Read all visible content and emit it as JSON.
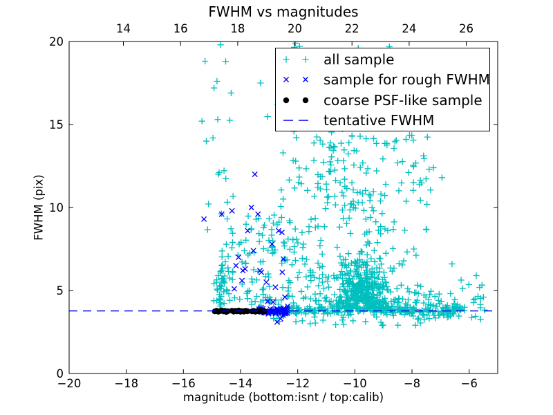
{
  "figure": {
    "title": "FWHM vs magnitudes",
    "xlabel": "magnitude (bottom:isnt / top:calib)",
    "ylabel": "FWHM (pix)"
  },
  "colors": {
    "all_sample": "#00bfbf",
    "rough_sample": "#0000ff",
    "psf_sample": "#000000",
    "tentative_line": "#0000ee",
    "frame": "#000000",
    "background": "#ffffff"
  },
  "axes": {
    "x_bottom": {
      "min": -20,
      "max": -5,
      "ticks": [
        -20,
        -18,
        -16,
        -14,
        -12,
        -10,
        -8,
        -6
      ],
      "tick_labels": [
        "−20",
        "−18",
        "−16",
        "−14",
        "−12",
        "−10",
        "−8",
        "−6"
      ]
    },
    "x_top": {
      "min": 12.1,
      "max": 27.1,
      "ticks": [
        14,
        16,
        18,
        20,
        22,
        24,
        26
      ],
      "tick_labels": [
        "14",
        "16",
        "18",
        "20",
        "22",
        "24",
        "26"
      ]
    },
    "y": {
      "min": 0,
      "max": 20,
      "ticks": [
        0,
        5,
        10,
        15,
        20
      ],
      "tick_labels": [
        "0",
        "5",
        "10",
        "15",
        "20"
      ]
    }
  },
  "legend": {
    "entries": [
      {
        "label": "all sample",
        "marker": "plus",
        "color": "#00bfbf"
      },
      {
        "label": "sample for rough FWHM",
        "marker": "x",
        "color": "#0000ff"
      },
      {
        "label": "coarse PSF-like sample",
        "marker": "dot",
        "color": "#000000"
      },
      {
        "label": "tentative FWHM",
        "marker": "dash",
        "color": "#0000ee"
      }
    ]
  },
  "chart_data": {
    "type": "scatter",
    "title": "FWHM vs magnitudes",
    "xlabel": "magnitude (bottom:isnt / top:calib)",
    "ylabel": "FWHM (pix)",
    "xlim_bottom": [
      -20,
      -5
    ],
    "xlim_top": [
      12.1,
      27.1
    ],
    "ylim": [
      0,
      20
    ],
    "grid": false,
    "legend_position": "upper right",
    "tentative_fwhm": 3.77,
    "series": [
      {
        "name": "all sample",
        "marker": "plus",
        "color": "#00bfbf",
        "points": [
          [
            -15.35,
            15.2
          ],
          [
            -14.93,
            17.2
          ],
          [
            -14.7,
            19.8
          ],
          [
            -14.52,
            18.8
          ],
          [
            -14.33,
            16.9
          ],
          [
            -13.3,
            17.5
          ],
          [
            -12.7,
            16.2
          ],
          [
            -12.08,
            19.9
          ],
          [
            -11.38,
            19.4
          ],
          [
            -10.82,
            17.9
          ],
          [
            -10.28,
            18.8
          ],
          [
            -9.88,
            19.6
          ],
          [
            -9.2,
            16.8
          ],
          [
            -8.62,
            15.1
          ],
          [
            -7.4,
            12.3
          ],
          [
            -6.95,
            11.8
          ],
          [
            -7.25,
            12.4
          ],
          [
            -6.6,
            6.6
          ],
          [
            -5.75,
            5.9
          ],
          [
            -5.5,
            4.6
          ]
        ],
        "clusters": [
          {
            "name": "left-column",
            "count": 35,
            "seed": 1,
            "x": {
              "d": "n",
              "m": -14.72,
              "s": 0.13
            },
            "y": {
              "d": "hn",
              "m": 4.0,
              "s": 1.5
            }
          },
          {
            "name": "left-tall",
            "count": 18,
            "seed": 2,
            "x": {
              "d": "u",
              "a": -15.25,
              "b": -14.25
            },
            "y": {
              "d": "u",
              "a": 8.0,
              "b": 19.5
            }
          },
          {
            "name": "left-mid",
            "count": 55,
            "seed": 3,
            "x": {
              "d": "u",
              "a": -14.55,
              "b": -12.8
            },
            "y": {
              "d": "u",
              "a": 4.1,
              "b": 9.6
            }
          },
          {
            "name": "mid",
            "count": 65,
            "seed": 4,
            "x": {
              "d": "u",
              "a": -13.0,
              "b": -11.1
            },
            "y": {
              "d": "u",
              "a": 4.0,
              "b": 9.2
            }
          },
          {
            "name": "mid-tall",
            "count": 32,
            "seed": 5,
            "x": {
              "d": "u",
              "a": -13.3,
              "b": -10.4
            },
            "y": {
              "d": "u",
              "a": 9.2,
              "b": 19.8
            }
          },
          {
            "name": "line-band",
            "count": 170,
            "seed": 6,
            "x": {
              "d": "u",
              "a": -12.62,
              "b": -7.9
            },
            "y": {
              "d": "n",
              "m": 3.8,
              "s": 0.13
            }
          },
          {
            "name": "line-band-ext",
            "count": 55,
            "seed": 7,
            "x": {
              "d": "u",
              "a": -7.9,
              "b": -6.1
            },
            "y": {
              "d": "n",
              "m": 3.82,
              "s": 0.2
            }
          },
          {
            "name": "blob-core",
            "count": 430,
            "seed": 8,
            "x": {
              "d": "n",
              "m": -9.72,
              "s": 0.58
            },
            "y": {
              "d": "hn",
              "m": 3.88,
              "s": 1.45
            }
          },
          {
            "name": "blob-upper",
            "count": 55,
            "seed": 9,
            "x": {
              "d": "n",
              "m": -9.8,
              "s": 0.8
            },
            "y": {
              "d": "u",
              "a": 8.3,
              "b": 11.2
            }
          },
          {
            "name": "upper-mid",
            "count": 85,
            "seed": 10,
            "x": {
              "d": "u",
              "a": -12.3,
              "b": -7.35
            },
            "y": {
              "d": "u",
              "a": 10.9,
              "b": 14.6
            }
          },
          {
            "name": "upper-top",
            "count": 38,
            "seed": 11,
            "x": {
              "d": "u",
              "a": -12.2,
              "b": -7.6
            },
            "y": {
              "d": "u",
              "a": 14.6,
              "b": 19.8
            }
          },
          {
            "name": "right-sparse",
            "count": 75,
            "seed": 12,
            "x": {
              "d": "u",
              "a": -8.6,
              "b": -5.45
            },
            "y": {
              "d": "hn",
              "m": 3.25,
              "s": 1.0
            }
          },
          {
            "name": "right-tall",
            "count": 12,
            "seed": 13,
            "x": {
              "d": "u",
              "a": -8.4,
              "b": -6.8
            },
            "y": {
              "d": "u",
              "a": 6.5,
              "b": 12.5
            }
          },
          {
            "name": "below-line",
            "count": 28,
            "seed": 14,
            "x": {
              "d": "u",
              "a": -13.2,
              "b": -6.2
            },
            "y": {
              "d": "u",
              "a": 2.9,
              "b": 3.55
            }
          },
          {
            "name": "fill-mid-low",
            "count": 45,
            "seed": 15,
            "x": {
              "d": "u",
              "a": -14.8,
              "b": -11.2
            },
            "y": {
              "d": "hn",
              "m": 3.95,
              "s": 1.3
            }
          }
        ]
      },
      {
        "name": "sample for rough FWHM",
        "marker": "x",
        "color": "#0000ff",
        "points": [
          [
            -15.28,
            9.3
          ],
          [
            -14.66,
            9.6
          ],
          [
            -14.3,
            9.8
          ],
          [
            -13.62,
            10.0
          ],
          [
            -13.5,
            12.0
          ],
          [
            -13.39,
            9.6
          ],
          [
            -14.07,
            7.0
          ],
          [
            -13.84,
            6.3
          ],
          [
            -13.55,
            7.4
          ],
          [
            -13.27,
            6.1
          ],
          [
            -12.9,
            7.8
          ],
          [
            -13.75,
            8.6
          ],
          [
            -12.55,
            8.5
          ],
          [
            -12.5,
            6.9
          ],
          [
            -12.54,
            6.1
          ],
          [
            -12.78,
            5.2
          ],
          [
            -13.95,
            5.6
          ],
          [
            -14.22,
            5.1
          ],
          [
            -13.1,
            5.5
          ],
          [
            -12.45,
            4.6
          ],
          [
            -13.05,
            4.35
          ],
          [
            -12.35,
            4.05
          ],
          [
            -12.6,
            3.3
          ],
          [
            -12.72,
            3.1
          ],
          [
            -14.16,
            6.5
          ],
          [
            -13.92,
            6.2
          ],
          [
            -13.32,
            6.2
          ],
          [
            -12.67,
            8.6
          ],
          [
            -12.86,
            4.3
          ]
        ],
        "clusters": [
          {
            "name": "rough-band",
            "count": 48,
            "seed": 21,
            "x": {
              "d": "u",
              "a": -13.35,
              "b": -12.33
            },
            "y": {
              "d": "n",
              "m": 3.78,
              "s": 0.11
            }
          }
        ]
      },
      {
        "name": "coarse PSF-like sample",
        "marker": "dot",
        "color": "#000000",
        "points": [
          [
            -14.9,
            3.74
          ],
          [
            -14.84,
            3.78
          ],
          [
            -14.78,
            3.72
          ],
          [
            -14.72,
            3.76
          ],
          [
            -14.66,
            3.8
          ],
          [
            -14.6,
            3.74
          ],
          [
            -14.55,
            3.77
          ],
          [
            -14.5,
            3.71
          ],
          [
            -14.45,
            3.75
          ],
          [
            -14.3,
            3.78
          ],
          [
            -14.24,
            3.73
          ],
          [
            -14.18,
            3.77
          ],
          [
            -14.12,
            3.74
          ],
          [
            -14.06,
            3.79
          ],
          [
            -14.0,
            3.72
          ],
          [
            -13.94,
            3.76
          ],
          [
            -13.88,
            3.73
          ],
          [
            -13.82,
            3.78
          ],
          [
            -13.76,
            3.75
          ],
          [
            -13.6,
            3.74
          ],
          [
            -13.54,
            3.77
          ],
          [
            -13.48,
            3.72
          ],
          [
            -13.42,
            3.76
          ],
          [
            -13.36,
            3.74
          ],
          [
            -13.29,
            3.78
          ],
          [
            -13.22,
            3.73
          ],
          [
            -13.16,
            3.75
          ]
        ]
      },
      {
        "name": "tentative FWHM",
        "type": "hline",
        "color": "#0000ee",
        "y": 3.77,
        "dash": [
          12,
          8
        ]
      }
    ]
  }
}
